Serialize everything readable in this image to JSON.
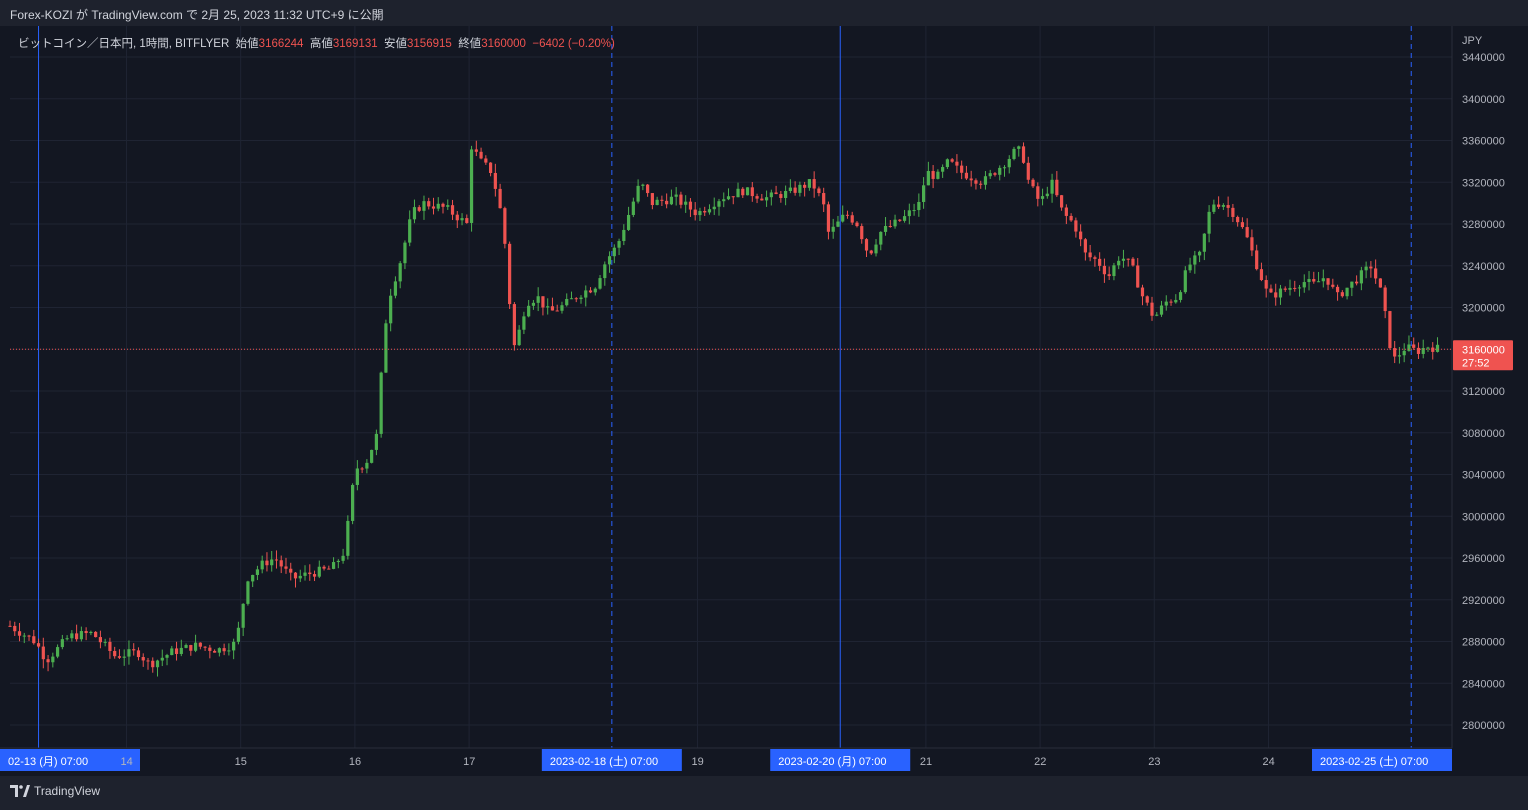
{
  "header": {
    "publish_line": "Forex-KOZI が TradingView.com で 2月 25, 2023 11:32 UTC+9 に公開"
  },
  "legend": {
    "symbol": "ビットコイン／日本円, 1時間, BITFLYER",
    "open_label": "始値",
    "open": "3166244",
    "high_label": "高値",
    "high": "3169131",
    "low_label": "安値",
    "low": "3156915",
    "close_label": "終値",
    "close": "3160000",
    "change": "−6402 (−0.20%)"
  },
  "price_axis": {
    "currency": "JPY",
    "last_price": "3160000",
    "countdown": "27:52"
  },
  "footer": {
    "brand": "TradingView"
  },
  "colors": {
    "up": "#26a69a",
    "up_candle": "#4caf50",
    "down": "#ef5350",
    "background": "#131722",
    "grid": "#1f2433",
    "session_line": "#2962ff"
  },
  "chart_data": {
    "type": "candlestick",
    "title": "ビットコイン／日本円, 1時間, BITFLYER",
    "ylabel": "JPY",
    "ylim": [
      2780000,
      3450000
    ],
    "y_ticks": [
      2800000,
      2840000,
      2880000,
      2920000,
      2960000,
      3000000,
      3040000,
      3080000,
      3120000,
      3160000,
      3200000,
      3240000,
      3280000,
      3320000,
      3360000,
      3400000,
      3440000
    ],
    "x_ticks": [
      {
        "day": 13,
        "label": "02-13 (月)   07:00",
        "highlight": true
      },
      {
        "day": 14,
        "label": "14",
        "highlight": false
      },
      {
        "day": 15,
        "label": "15",
        "highlight": false
      },
      {
        "day": 16,
        "label": "16",
        "highlight": false
      },
      {
        "day": 17,
        "label": "17",
        "highlight": false
      },
      {
        "day": 18.25,
        "label": "2023-02-18 (土)   07:00",
        "highlight": true
      },
      {
        "day": 19,
        "label": "19",
        "highlight": false
      },
      {
        "day": 20.25,
        "label": "2023-02-20 (月)   07:00",
        "highlight": true
      },
      {
        "day": 21,
        "label": "21",
        "highlight": false
      },
      {
        "day": 22,
        "label": "22",
        "highlight": false
      },
      {
        "day": 23,
        "label": "23",
        "highlight": false
      },
      {
        "day": 24,
        "label": "24",
        "highlight": false
      },
      {
        "day": 25.25,
        "label": "2023-02-25 (土)   07:00",
        "highlight": true
      }
    ],
    "session_lines": [
      {
        "day": 13.23,
        "style": "solid"
      },
      {
        "day": 18.25,
        "style": "dashed"
      },
      {
        "day": 20.25,
        "style": "solid"
      },
      {
        "day": 25.25,
        "style": "dashed"
      }
    ],
    "last_price": 3160000,
    "closes_anchor": [
      [
        12.98,
        2895000
      ],
      [
        13.2,
        2880000
      ],
      [
        13.3,
        2862000
      ],
      [
        13.5,
        2885000
      ],
      [
        13.7,
        2888000
      ],
      [
        13.9,
        2866000
      ],
      [
        14.1,
        2870000
      ],
      [
        14.2,
        2858000
      ],
      [
        14.4,
        2870000
      ],
      [
        14.6,
        2876000
      ],
      [
        14.8,
        2872000
      ],
      [
        14.95,
        2878000
      ],
      [
        15.0,
        2900000
      ],
      [
        15.05,
        2940000
      ],
      [
        15.2,
        2955000
      ],
      [
        15.3,
        2960000
      ],
      [
        15.45,
        2940000
      ],
      [
        15.6,
        2945000
      ],
      [
        15.8,
        2950000
      ],
      [
        15.9,
        2965000
      ],
      [
        15.95,
        3000000
      ],
      [
        16.0,
        3045000
      ],
      [
        16.1,
        3052000
      ],
      [
        16.2,
        3080000
      ],
      [
        16.25,
        3170000
      ],
      [
        16.3,
        3210000
      ],
      [
        16.4,
        3245000
      ],
      [
        16.5,
        3290000
      ],
      [
        16.6,
        3300000
      ],
      [
        16.8,
        3295000
      ],
      [
        16.98,
        3280000
      ],
      [
        17.02,
        3355000
      ],
      [
        17.1,
        3340000
      ],
      [
        17.2,
        3330000
      ],
      [
        17.3,
        3280000
      ],
      [
        17.35,
        3210000
      ],
      [
        17.4,
        3160000
      ],
      [
        17.5,
        3205000
      ],
      [
        17.6,
        3210000
      ],
      [
        17.7,
        3195000
      ],
      [
        17.8,
        3200000
      ],
      [
        18.0,
        3215000
      ],
      [
        18.1,
        3220000
      ],
      [
        18.2,
        3245000
      ],
      [
        18.3,
        3260000
      ],
      [
        18.4,
        3290000
      ],
      [
        18.5,
        3320000
      ],
      [
        18.6,
        3300000
      ],
      [
        18.8,
        3305000
      ],
      [
        19.0,
        3290000
      ],
      [
        19.2,
        3305000
      ],
      [
        19.4,
        3312000
      ],
      [
        19.6,
        3305000
      ],
      [
        19.8,
        3310000
      ],
      [
        20.0,
        3320000
      ],
      [
        20.1,
        3300000
      ],
      [
        20.15,
        3270000
      ],
      [
        20.3,
        3290000
      ],
      [
        20.4,
        3280000
      ],
      [
        20.5,
        3250000
      ],
      [
        20.6,
        3272000
      ],
      [
        20.8,
        3285000
      ],
      [
        20.95,
        3300000
      ],
      [
        21.0,
        3330000
      ],
      [
        21.1,
        3325000
      ],
      [
        21.2,
        3340000
      ],
      [
        21.3,
        3330000
      ],
      [
        21.4,
        3325000
      ],
      [
        21.5,
        3320000
      ],
      [
        21.6,
        3330000
      ],
      [
        21.7,
        3340000
      ],
      [
        21.8,
        3352000
      ],
      [
        21.85,
        3345000
      ],
      [
        21.9,
        3320000
      ],
      [
        22.0,
        3300000
      ],
      [
        22.1,
        3320000
      ],
      [
        22.2,
        3290000
      ],
      [
        22.3,
        3280000
      ],
      [
        22.4,
        3250000
      ],
      [
        22.5,
        3245000
      ],
      [
        22.6,
        3230000
      ],
      [
        22.7,
        3250000
      ],
      [
        22.8,
        3240000
      ],
      [
        22.9,
        3210000
      ],
      [
        23.0,
        3190000
      ],
      [
        23.1,
        3205000
      ],
      [
        23.2,
        3210000
      ],
      [
        23.3,
        3240000
      ],
      [
        23.4,
        3250000
      ],
      [
        23.5,
        3300000
      ],
      [
        23.6,
        3300000
      ],
      [
        23.7,
        3290000
      ],
      [
        23.8,
        3270000
      ],
      [
        23.9,
        3240000
      ],
      [
        24.0,
        3210000
      ],
      [
        24.1,
        3215000
      ],
      [
        24.2,
        3220000
      ],
      [
        24.3,
        3225000
      ],
      [
        24.4,
        3222000
      ],
      [
        24.5,
        3230000
      ],
      [
        24.6,
        3210000
      ],
      [
        24.7,
        3220000
      ],
      [
        24.8,
        3230000
      ],
      [
        24.9,
        3240000
      ],
      [
        25.0,
        3210000
      ],
      [
        25.05,
        3170000
      ],
      [
        25.1,
        3150000
      ],
      [
        25.2,
        3162000
      ],
      [
        25.3,
        3158000
      ],
      [
        25.4,
        3163000
      ],
      [
        25.5,
        3160000
      ]
    ]
  }
}
